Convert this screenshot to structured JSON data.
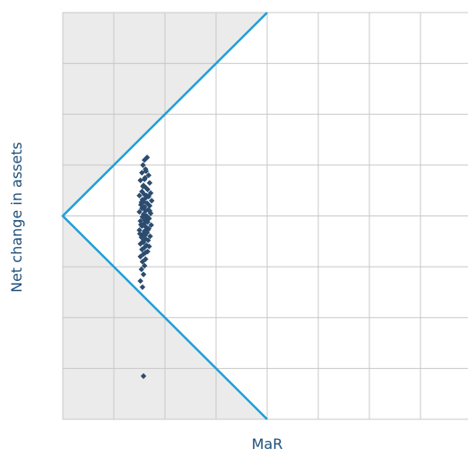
{
  "chart_data": {
    "type": "scatter",
    "xlabel": "MaR",
    "ylabel": "Net change in assets",
    "xlim": [
      0,
      8
    ],
    "ylim": [
      -4,
      4
    ],
    "grid": true,
    "point_color": "#2b4c6f",
    "line_color": "#1ea0d8",
    "shade_color": "#ebebeb",
    "grid_color": "#c8c8c8",
    "frontier": [
      [
        4,
        4
      ],
      [
        0,
        0
      ],
      [
        4,
        -4
      ]
    ],
    "points": [
      [
        1.6,
        1.1
      ],
      [
        1.65,
        1.15
      ],
      [
        1.57,
        1.0
      ],
      [
        1.62,
        0.92
      ],
      [
        1.55,
        0.85
      ],
      [
        1.68,
        0.8
      ],
      [
        1.6,
        0.72
      ],
      [
        1.52,
        0.7
      ],
      [
        1.7,
        0.65
      ],
      [
        1.58,
        0.6
      ],
      [
        1.63,
        0.55
      ],
      [
        1.66,
        0.52
      ],
      [
        1.55,
        0.48
      ],
      [
        1.72,
        0.45
      ],
      [
        1.6,
        0.42
      ],
      [
        1.5,
        0.4
      ],
      [
        1.68,
        0.38
      ],
      [
        1.62,
        0.35
      ],
      [
        1.56,
        0.32
      ],
      [
        1.74,
        0.3
      ],
      [
        1.58,
        0.28
      ],
      [
        1.65,
        0.25
      ],
      [
        1.53,
        0.22
      ],
      [
        1.7,
        0.2
      ],
      [
        1.6,
        0.18
      ],
      [
        1.55,
        0.15
      ],
      [
        1.67,
        0.12
      ],
      [
        1.62,
        0.1
      ],
      [
        1.5,
        0.08
      ],
      [
        1.72,
        0.05
      ],
      [
        1.58,
        0.03
      ],
      [
        1.64,
        0.0
      ],
      [
        1.56,
        -0.02
      ],
      [
        1.69,
        -0.05
      ],
      [
        1.61,
        -0.08
      ],
      [
        1.52,
        -0.1
      ],
      [
        1.66,
        -0.12
      ],
      [
        1.59,
        -0.15
      ],
      [
        1.73,
        -0.18
      ],
      [
        1.55,
        -0.2
      ],
      [
        1.63,
        -0.22
      ],
      [
        1.68,
        -0.25
      ],
      [
        1.5,
        -0.28
      ],
      [
        1.6,
        -0.3
      ],
      [
        1.65,
        -0.33
      ],
      [
        1.57,
        -0.36
      ],
      [
        1.71,
        -0.4
      ],
      [
        1.54,
        -0.42
      ],
      [
        1.62,
        -0.45
      ],
      [
        1.67,
        -0.48
      ],
      [
        1.58,
        -0.52
      ],
      [
        1.52,
        -0.55
      ],
      [
        1.64,
        -0.58
      ],
      [
        1.6,
        -0.62
      ],
      [
        1.55,
        -0.66
      ],
      [
        1.66,
        -0.7
      ],
      [
        1.58,
        -0.75
      ],
      [
        1.52,
        -0.8
      ],
      [
        1.62,
        -0.85
      ],
      [
        1.56,
        -0.9
      ],
      [
        1.6,
        -0.98
      ],
      [
        1.54,
        -1.05
      ],
      [
        1.58,
        -1.15
      ],
      [
        1.52,
        -1.28
      ],
      [
        1.56,
        -1.4
      ],
      [
        1.61,
        0.75
      ],
      [
        1.57,
        0.58
      ],
      [
        1.64,
        0.4
      ],
      [
        1.59,
        0.16
      ],
      [
        1.66,
        -0.04
      ],
      [
        1.53,
        -0.17
      ],
      [
        1.61,
        -0.38
      ],
      [
        1.69,
        -0.6
      ],
      [
        1.63,
        0.88
      ],
      [
        1.54,
        0.27
      ],
      [
        1.67,
        -0.27
      ],
      [
        1.57,
        -0.5
      ],
      [
        1.62,
        -0.72
      ],
      [
        1.7,
        0.1
      ],
      [
        1.51,
        -0.35
      ],
      [
        1.58,
        -3.15
      ]
    ]
  }
}
